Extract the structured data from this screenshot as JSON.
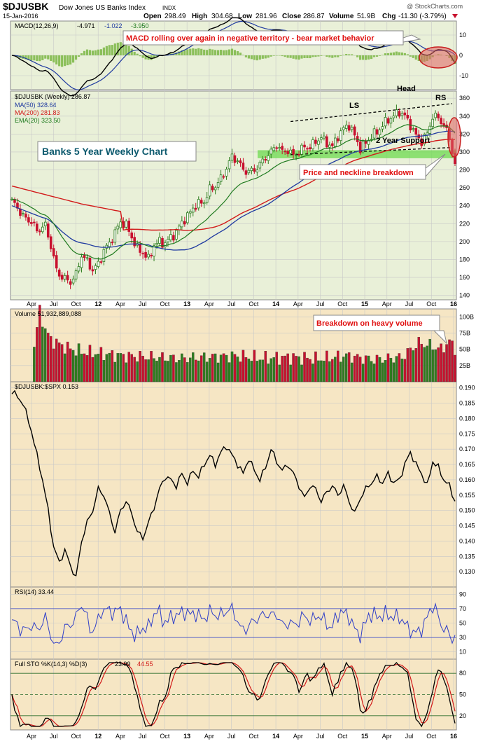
{
  "header": {
    "symbol": "$DJUSBK",
    "name": "Dow Jones US Banks Index",
    "exchange": "INDX",
    "date": "15-Jan-2016",
    "watermark": "@ StockCharts.com",
    "open_label": "Open",
    "open": "298.49",
    "high_label": "High",
    "high": "304.68",
    "low_label": "Low",
    "low": "281.96",
    "close_label": "Close",
    "close": "286.87",
    "volume_label": "Volume",
    "volume": "51.9B",
    "chg_label": "Chg",
    "chg": "-11.30 (-3.79%)"
  },
  "colors": {
    "panel_green": "#e9f0d8",
    "panel_tan": "#f6e6c4",
    "candle_up": "#2e7d1f",
    "candle_down": "#c8102e",
    "ma50": "#1f3aa0",
    "ma200": "#d21919",
    "ema20": "#1e7a1e",
    "support_band": "#6edb50",
    "annotation_red": "#e01010",
    "annotation_teal": "#0d5a6e",
    "rsi_line": "#2f3fc8"
  },
  "annotations": {
    "macd_note": "MACD rolling over again in negative territory - bear market behavior",
    "chart_title": "Banks 5 Year Weekly Chart",
    "breakdown": "Price and neckline breakdown",
    "volume_note": "Breakdown on heavy volume",
    "support": "2 Year Support",
    "ls": "LS",
    "head": "Head",
    "rs": "RS"
  },
  "panels": {
    "macd": {
      "label": "MACD(12,26,9)",
      "macd": "-4.971",
      "signal": "-1.022",
      "hist": "-3.950"
    },
    "price": {
      "label": "$DJUSBK (Weekly) 286.87",
      "ma50": "MA(50) 328.64",
      "ma200": "MA(200) 281.83",
      "ema20": "EMA(20) 323.50"
    },
    "volume": {
      "label": "Volume 51,932,889,088"
    },
    "ratio": {
      "label": "$DJUSBK:$SPX 0.153"
    },
    "rsi": {
      "label": "RSI(14) 33.44"
    },
    "sto": {
      "label": "Full STO %K(14,3) %D(3)",
      "k": "23.99",
      "d": "44.55"
    }
  },
  "axes": {
    "x_ticks": [
      "Apr",
      "Jul",
      "Oct",
      "12",
      "Apr",
      "Jul",
      "Oct",
      "13",
      "Apr",
      "Jul",
      "Oct",
      "14",
      "Apr",
      "Jul",
      "Oct",
      "15",
      "Apr",
      "Jul",
      "Oct",
      "16"
    ],
    "macd_ticks": [
      "10",
      "0",
      "-10"
    ],
    "price_ticks": [
      "360",
      "340",
      "320",
      "300",
      "280",
      "260",
      "240",
      "220",
      "200",
      "180",
      "160",
      "140"
    ],
    "volume_ticks": [
      "100B",
      "75B",
      "50B",
      "25B"
    ],
    "ratio_ticks": [
      "0.190",
      "0.185",
      "0.180",
      "0.175",
      "0.170",
      "0.165",
      "0.160",
      "0.155",
      "0.150",
      "0.145",
      "0.140",
      "0.135",
      "0.130"
    ],
    "rsi_ticks": [
      "90",
      "70",
      "50",
      "30",
      "10"
    ],
    "sto_ticks": [
      "80",
      "50",
      "20"
    ]
  },
  "chart_data": {
    "type": "line",
    "x_range": [
      "2011-01",
      "2016-01-15"
    ],
    "price_range": [
      135,
      368
    ],
    "price_close_anchors": [
      [
        0,
        245
      ],
      [
        2,
        238
      ],
      [
        4,
        228
      ],
      [
        7,
        222
      ],
      [
        9,
        212
      ],
      [
        12,
        218
      ],
      [
        14,
        195
      ],
      [
        16,
        168
      ],
      [
        18,
        160
      ],
      [
        21,
        155
      ],
      [
        23,
        163
      ],
      [
        25,
        185
      ],
      [
        27,
        178
      ],
      [
        29,
        168
      ],
      [
        31,
        175
      ],
      [
        33,
        190
      ],
      [
        35,
        198
      ],
      [
        37,
        210
      ],
      [
        39,
        222
      ],
      [
        41,
        218
      ],
      [
        43,
        205
      ],
      [
        45,
        192
      ],
      [
        47,
        188
      ],
      [
        49,
        180
      ],
      [
        51,
        196
      ],
      [
        53,
        200
      ],
      [
        55,
        198
      ],
      [
        57,
        205
      ],
      [
        59,
        210
      ],
      [
        61,
        222
      ],
      [
        63,
        228
      ],
      [
        65,
        238
      ],
      [
        67,
        242
      ],
      [
        69,
        245
      ],
      [
        71,
        258
      ],
      [
        73,
        262
      ],
      [
        75,
        270
      ],
      [
        77,
        282
      ],
      [
        79,
        295
      ],
      [
        81,
        290
      ],
      [
        83,
        280
      ],
      [
        85,
        278
      ],
      [
        87,
        280
      ],
      [
        89,
        286
      ],
      [
        91,
        294
      ],
      [
        93,
        300
      ],
      [
        95,
        308
      ],
      [
        97,
        300
      ],
      [
        99,
        302
      ],
      [
        101,
        296
      ],
      [
        103,
        300
      ],
      [
        105,
        306
      ],
      [
        107,
        305
      ],
      [
        109,
        312
      ],
      [
        111,
        316
      ],
      [
        113,
        310
      ],
      [
        115,
        306
      ],
      [
        117,
        318
      ],
      [
        119,
        326
      ],
      [
        121,
        330
      ],
      [
        123,
        318
      ],
      [
        125,
        304
      ],
      [
        127,
        310
      ],
      [
        129,
        318
      ],
      [
        131,
        322
      ],
      [
        133,
        330
      ],
      [
        135,
        336
      ],
      [
        137,
        340
      ],
      [
        139,
        345
      ],
      [
        141,
        340
      ],
      [
        143,
        330
      ],
      [
        145,
        318
      ],
      [
        147,
        312
      ],
      [
        149,
        320
      ],
      [
        151,
        340
      ],
      [
        153,
        338
      ],
      [
        155,
        330
      ],
      [
        157,
        315
      ],
      [
        159,
        287
      ]
    ],
    "volume_range_billions": [
      0,
      110
    ],
    "volume_anchors": [
      [
        0,
        40
      ],
      [
        4,
        48
      ],
      [
        8,
        55
      ],
      [
        10,
        110
      ],
      [
        12,
        80
      ],
      [
        14,
        65
      ],
      [
        16,
        60
      ],
      [
        20,
        52
      ],
      [
        25,
        46
      ],
      [
        30,
        44
      ],
      [
        40,
        40
      ],
      [
        50,
        38
      ],
      [
        60,
        36
      ],
      [
        70,
        38
      ],
      [
        80,
        40
      ],
      [
        90,
        36
      ],
      [
        100,
        38
      ],
      [
        110,
        35
      ],
      [
        120,
        40
      ],
      [
        130,
        34
      ],
      [
        140,
        38
      ],
      [
        146,
        60
      ],
      [
        150,
        56
      ],
      [
        154,
        50
      ],
      [
        157,
        62
      ],
      [
        159,
        52
      ]
    ],
    "ratio_range": [
      0.125,
      0.192
    ],
    "ratio_anchors": [
      [
        0,
        0.189
      ],
      [
        4,
        0.185
      ],
      [
        7,
        0.176
      ],
      [
        9,
        0.168
      ],
      [
        11,
        0.16
      ],
      [
        13,
        0.15
      ],
      [
        15,
        0.138
      ],
      [
        17,
        0.133
      ],
      [
        19,
        0.137
      ],
      [
        21,
        0.132
      ],
      [
        23,
        0.128
      ],
      [
        25,
        0.14
      ],
      [
        27,
        0.146
      ],
      [
        29,
        0.15
      ],
      [
        31,
        0.157
      ],
      [
        33,
        0.155
      ],
      [
        35,
        0.149
      ],
      [
        37,
        0.143
      ],
      [
        39,
        0.15
      ],
      [
        41,
        0.153
      ],
      [
        43,
        0.149
      ],
      [
        45,
        0.143
      ],
      [
        47,
        0.141
      ],
      [
        49,
        0.146
      ],
      [
        51,
        0.151
      ],
      [
        53,
        0.157
      ],
      [
        55,
        0.161
      ],
      [
        57,
        0.16
      ],
      [
        59,
        0.158
      ],
      [
        61,
        0.162
      ],
      [
        63,
        0.159
      ],
      [
        65,
        0.163
      ],
      [
        67,
        0.161
      ],
      [
        69,
        0.165
      ],
      [
        71,
        0.168
      ],
      [
        73,
        0.165
      ],
      [
        75,
        0.169
      ],
      [
        77,
        0.171
      ],
      [
        79,
        0.168
      ],
      [
        81,
        0.165
      ],
      [
        83,
        0.162
      ],
      [
        85,
        0.167
      ],
      [
        87,
        0.163
      ],
      [
        89,
        0.16
      ],
      [
        91,
        0.164
      ],
      [
        93,
        0.17
      ],
      [
        95,
        0.166
      ],
      [
        97,
        0.163
      ],
      [
        99,
        0.165
      ],
      [
        101,
        0.162
      ],
      [
        103,
        0.158
      ],
      [
        105,
        0.154
      ],
      [
        107,
        0.158
      ],
      [
        109,
        0.157
      ],
      [
        111,
        0.153
      ],
      [
        113,
        0.156
      ],
      [
        115,
        0.158
      ],
      [
        117,
        0.155
      ],
      [
        119,
        0.158
      ],
      [
        121,
        0.153
      ],
      [
        123,
        0.149
      ],
      [
        125,
        0.154
      ],
      [
        127,
        0.157
      ],
      [
        129,
        0.159
      ],
      [
        131,
        0.161
      ],
      [
        133,
        0.159
      ],
      [
        135,
        0.162
      ],
      [
        137,
        0.159
      ],
      [
        139,
        0.16
      ],
      [
        141,
        0.165
      ],
      [
        143,
        0.169
      ],
      [
        145,
        0.165
      ],
      [
        147,
        0.162
      ],
      [
        149,
        0.158
      ],
      [
        151,
        0.166
      ],
      [
        153,
        0.164
      ],
      [
        155,
        0.16
      ],
      [
        157,
        0.158
      ],
      [
        159,
        0.153
      ]
    ],
    "rsi_range": [
      0,
      100
    ],
    "sto_range": [
      0,
      100
    ],
    "support_band": [
      293,
      302
    ],
    "neckline": [
      [
        100,
        297
      ],
      [
        158,
        305
      ]
    ],
    "upper_channel": [
      [
        100,
        334
      ],
      [
        158,
        354
      ]
    ]
  }
}
